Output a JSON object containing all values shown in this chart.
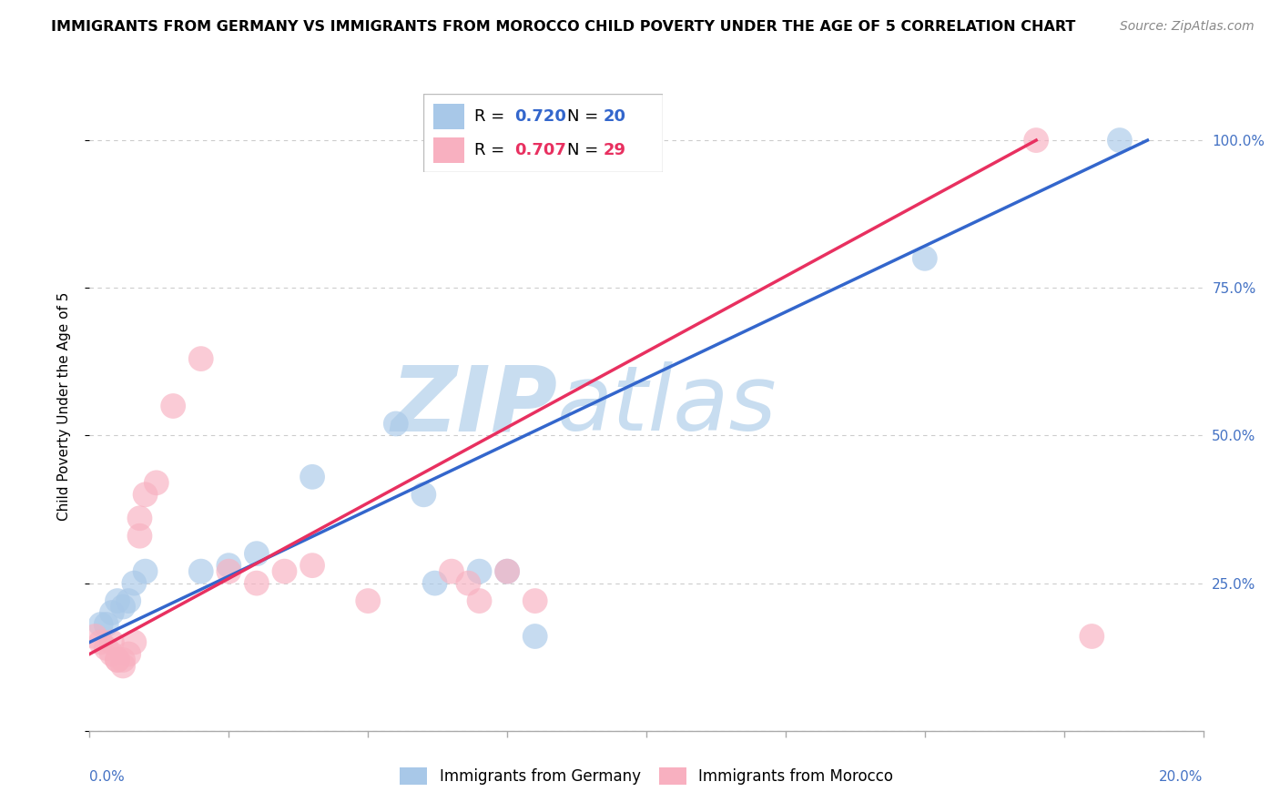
{
  "title": "IMMIGRANTS FROM GERMANY VS IMMIGRANTS FROM MOROCCO CHILD POVERTY UNDER THE AGE OF 5 CORRELATION CHART",
  "source": "Source: ZipAtlas.com",
  "ylabel": "Child Poverty Under the Age of 5",
  "watermark_zip": "ZIP",
  "watermark_atlas": "atlas",
  "germany_color": "#a8c8e8",
  "morocco_color": "#f8b0c0",
  "germany_line_color": "#3366cc",
  "morocco_line_color": "#e83060",
  "germany_scatter": [
    [
      0.002,
      0.18
    ],
    [
      0.003,
      0.18
    ],
    [
      0.004,
      0.2
    ],
    [
      0.005,
      0.22
    ],
    [
      0.006,
      0.21
    ],
    [
      0.007,
      0.22
    ],
    [
      0.008,
      0.25
    ],
    [
      0.01,
      0.27
    ],
    [
      0.02,
      0.27
    ],
    [
      0.025,
      0.28
    ],
    [
      0.03,
      0.3
    ],
    [
      0.04,
      0.43
    ],
    [
      0.055,
      0.52
    ],
    [
      0.06,
      0.4
    ],
    [
      0.062,
      0.25
    ],
    [
      0.07,
      0.27
    ],
    [
      0.075,
      0.27
    ],
    [
      0.08,
      0.16
    ],
    [
      0.15,
      0.8
    ],
    [
      0.185,
      1.0
    ]
  ],
  "morocco_scatter": [
    [
      0.001,
      0.16
    ],
    [
      0.002,
      0.15
    ],
    [
      0.003,
      0.14
    ],
    [
      0.004,
      0.15
    ],
    [
      0.004,
      0.13
    ],
    [
      0.005,
      0.12
    ],
    [
      0.005,
      0.12
    ],
    [
      0.006,
      0.11
    ],
    [
      0.006,
      0.12
    ],
    [
      0.007,
      0.13
    ],
    [
      0.008,
      0.15
    ],
    [
      0.009,
      0.33
    ],
    [
      0.009,
      0.36
    ],
    [
      0.01,
      0.4
    ],
    [
      0.012,
      0.42
    ],
    [
      0.015,
      0.55
    ],
    [
      0.02,
      0.63
    ],
    [
      0.025,
      0.27
    ],
    [
      0.03,
      0.25
    ],
    [
      0.035,
      0.27
    ],
    [
      0.04,
      0.28
    ],
    [
      0.05,
      0.22
    ],
    [
      0.065,
      0.27
    ],
    [
      0.068,
      0.25
    ],
    [
      0.07,
      0.22
    ],
    [
      0.075,
      0.27
    ],
    [
      0.08,
      0.22
    ],
    [
      0.17,
      1.0
    ],
    [
      0.18,
      0.16
    ]
  ],
  "xlim": [
    0,
    0.2
  ],
  "ylim": [
    0,
    1.1
  ],
  "ger_line": [
    [
      0.0,
      0.15
    ],
    [
      0.19,
      1.0
    ]
  ],
  "mor_line": [
    [
      0.0,
      0.13
    ],
    [
      0.17,
      1.0
    ]
  ]
}
